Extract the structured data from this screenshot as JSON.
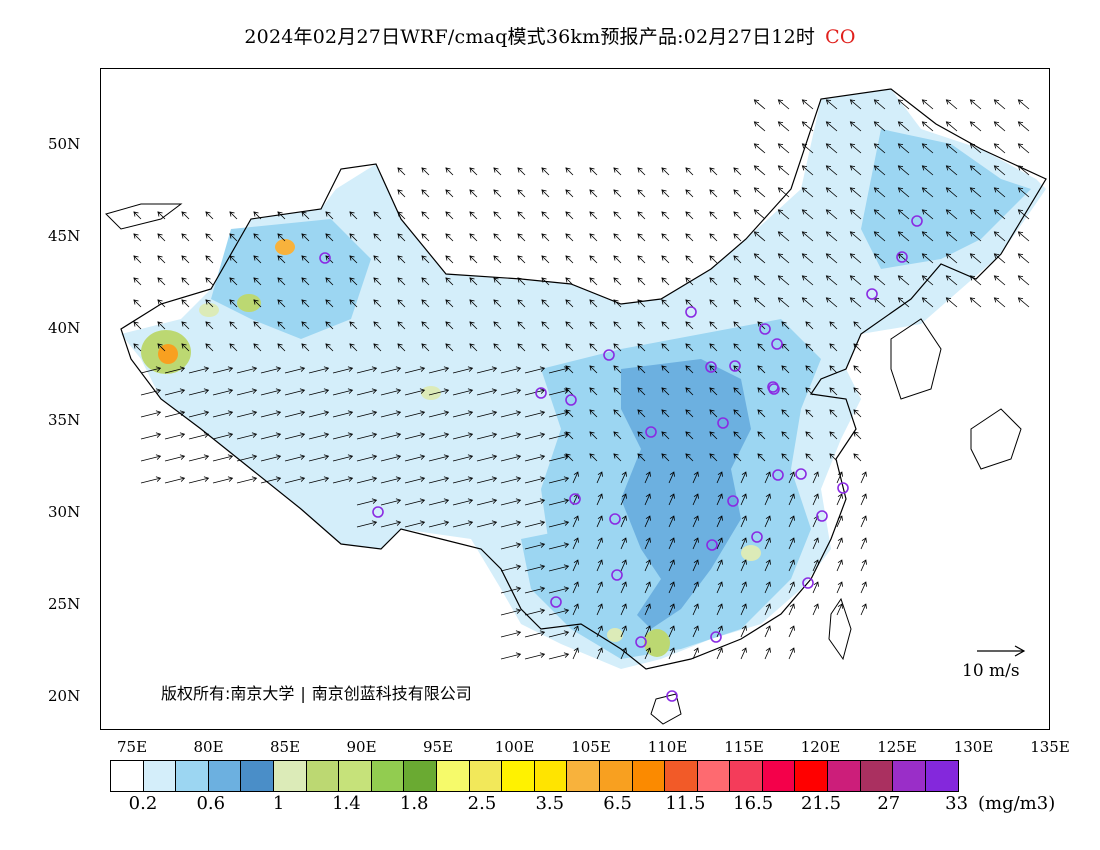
{
  "title": {
    "main": "2024年02月27日WRF/cmaq模式36km预报产品:02月27日12时",
    "species": "CO",
    "species_color": "#e0201c"
  },
  "map": {
    "lat_labels": [
      "50N",
      "45N",
      "40N",
      "35N",
      "30N",
      "25N",
      "20N"
    ],
    "lon_labels": [
      "75E",
      "80E",
      "85E",
      "90E",
      "95E",
      "100E",
      "105E",
      "110E",
      "115E",
      "120E",
      "125E",
      "130E",
      "135E"
    ],
    "copyright_left": "版权所有:南京大学",
    "copyright_right": "南京创蓝科技有限公司",
    "wind_scale_label": "10 m/s"
  },
  "colorbar": {
    "colors": [
      "#ffffff",
      "#d4eefa",
      "#9cd6f2",
      "#6cb0e0",
      "#4a8ec8",
      "#dcebb8",
      "#bcd872",
      "#c6e27a",
      "#92cc50",
      "#6aaa32",
      "#f6fa6a",
      "#f2e85a",
      "#fff200",
      "#ffe400",
      "#f8b23c",
      "#f8a020",
      "#fb8a00",
      "#f25a28",
      "#fe6a70",
      "#f43c5a",
      "#f4004a",
      "#ff0000",
      "#cc1e7a",
      "#aa3060",
      "#9a2ec8",
      "#8428dc"
    ],
    "labels": [
      "0.2",
      "0.6",
      "1",
      "1.4",
      "1.8",
      "2.5",
      "3.5",
      "6.5",
      "11.5",
      "16.5",
      "21.5",
      "27",
      "33"
    ],
    "unit": "(mg/m3)"
  },
  "stations_color": "#8a2be2"
}
